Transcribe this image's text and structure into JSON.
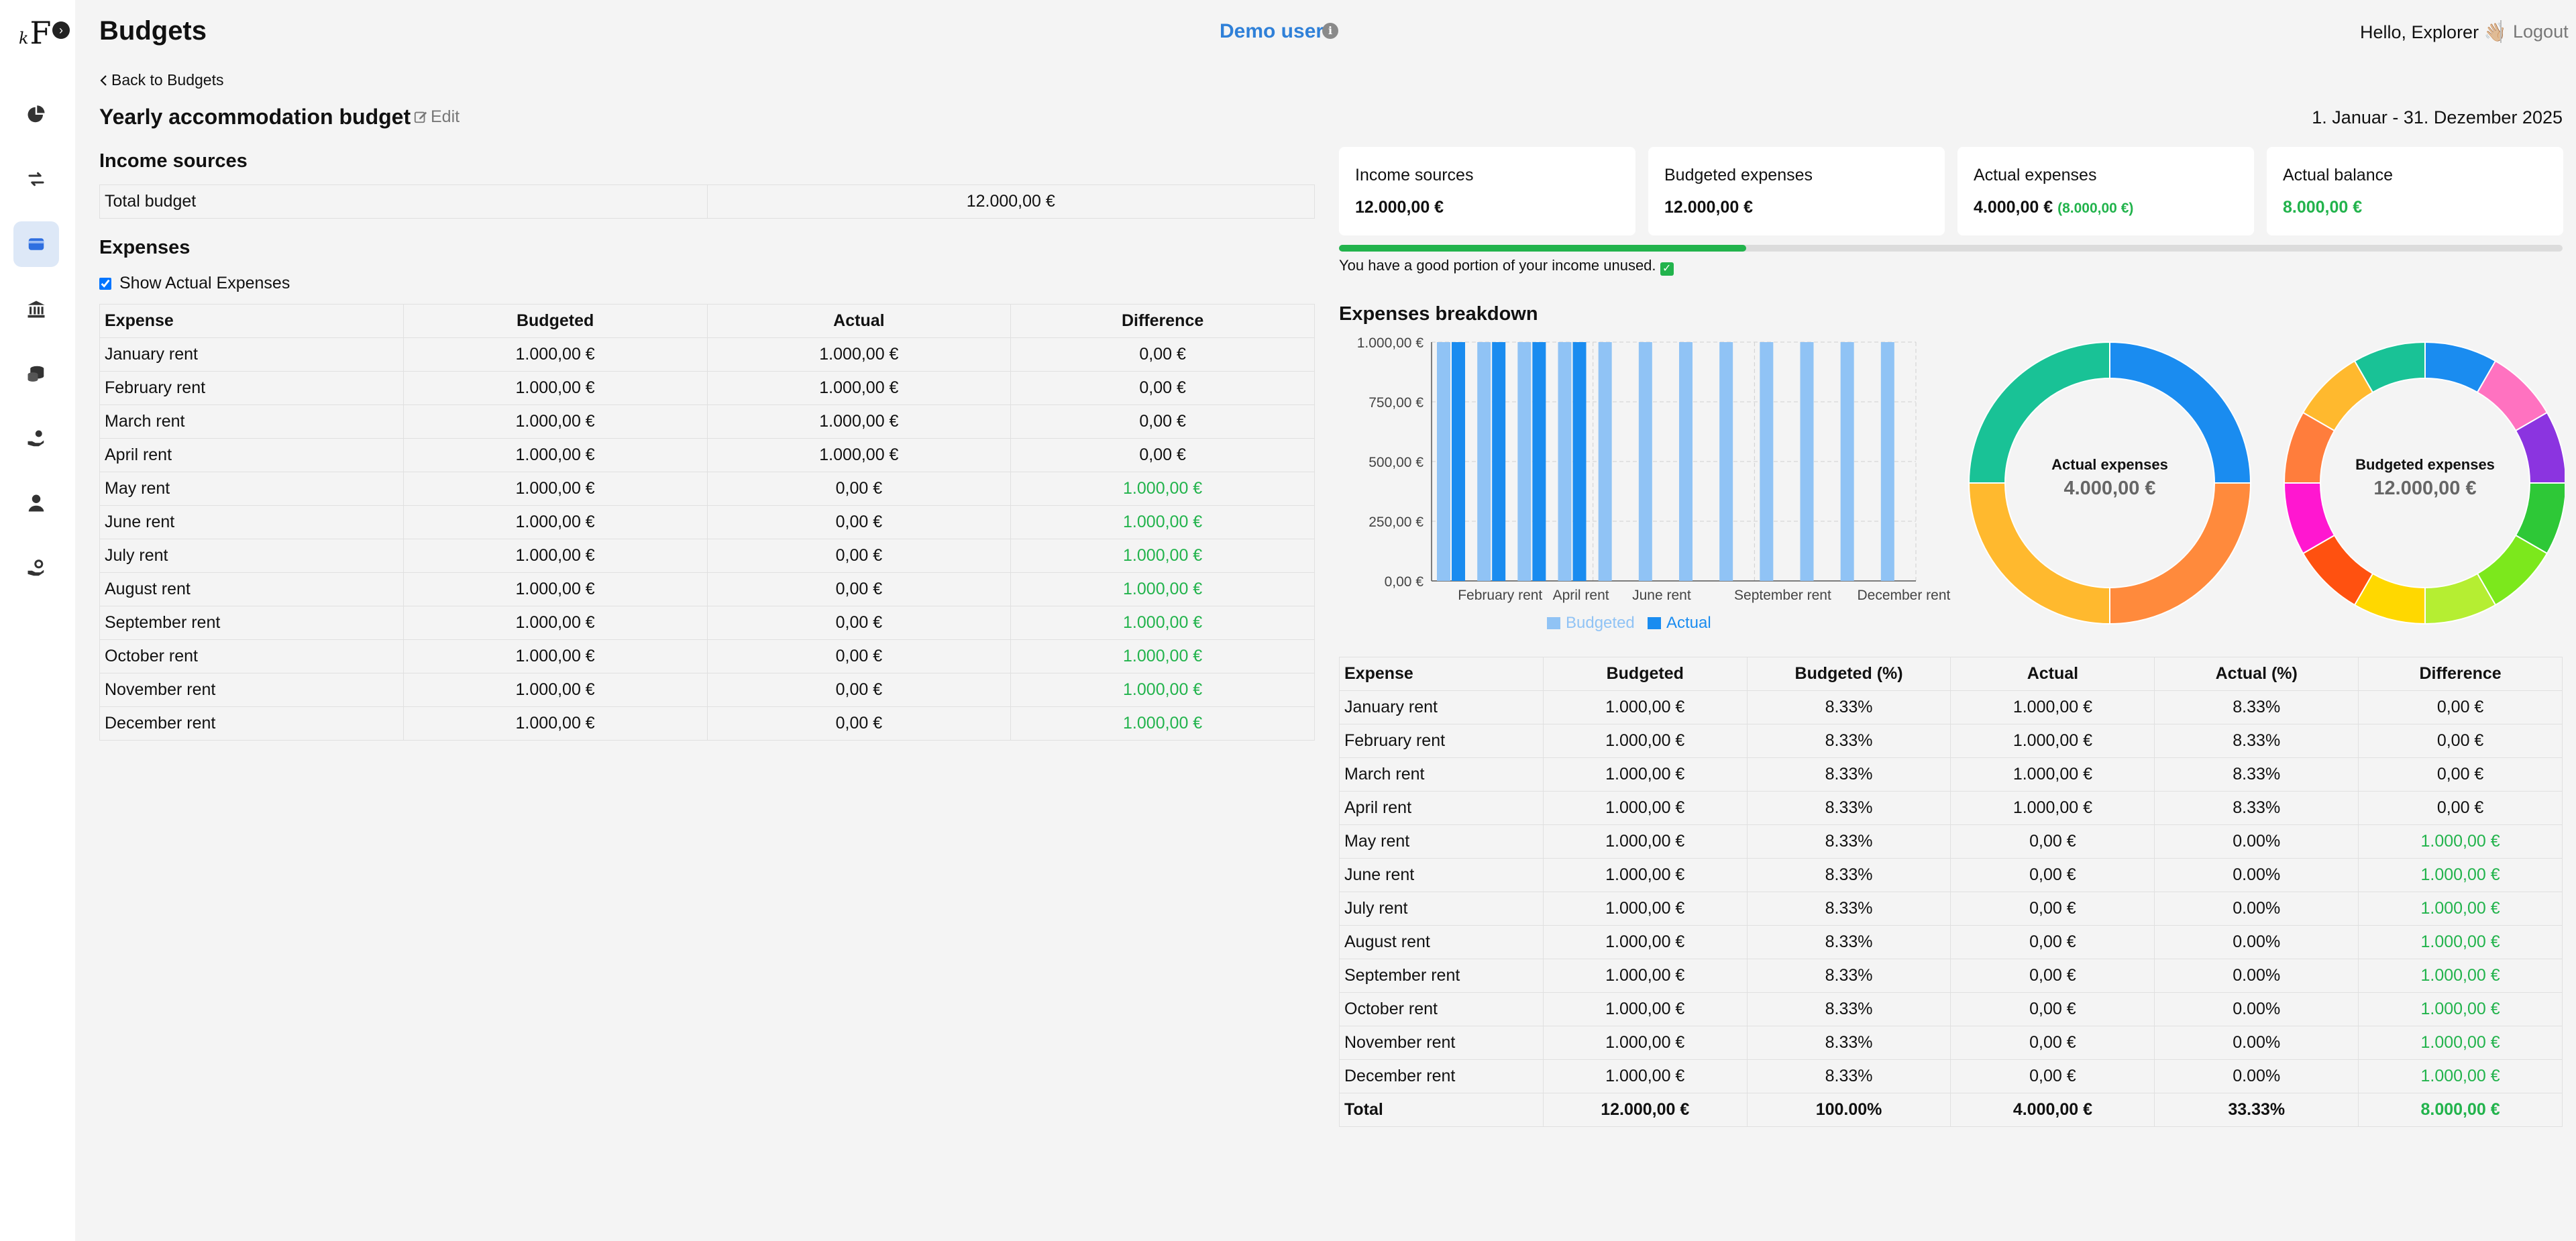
{
  "app": {
    "logo_letter": "F",
    "logo_small": "k",
    "collapse_glyph": "›",
    "title": "Budgets",
    "demo_user": "Demo user",
    "info_glyph": "i",
    "greeting": "Hello, Explorer 👋🏼",
    "logout": "Logout"
  },
  "sidebar": {
    "items": [
      {
        "icon": "pie-chart-icon",
        "active": false
      },
      {
        "icon": "transfer-arrows-icon",
        "active": false
      },
      {
        "icon": "wallet-icon",
        "active": true
      },
      {
        "icon": "bank-icon",
        "active": false
      },
      {
        "icon": "coins-icon",
        "active": false
      },
      {
        "icon": "hand-money-icon",
        "active": false
      },
      {
        "icon": "user-icon",
        "active": false
      },
      {
        "icon": "hand-settings-icon",
        "active": false
      }
    ]
  },
  "budget": {
    "back_label": "Back to Budgets",
    "name": "Yearly accommodation budget",
    "edit_label": "Edit",
    "date_range": "1. Januar - 31. Dezember 2025"
  },
  "income": {
    "title": "Income sources",
    "rows": [
      {
        "label": "Total budget",
        "value": "12.000,00 €"
      }
    ]
  },
  "expenses": {
    "title": "Expenses",
    "show_actual_label": "Show Actual Expenses",
    "show_actual_checked": true,
    "headers": [
      "Expense",
      "Budgeted",
      "Actual",
      "Difference"
    ],
    "rows": [
      [
        "January rent",
        "1.000,00 €",
        "1.000,00 €",
        "0,00 €"
      ],
      [
        "February rent",
        "1.000,00 €",
        "1.000,00 €",
        "0,00 €"
      ],
      [
        "March rent",
        "1.000,00 €",
        "1.000,00 €",
        "0,00 €"
      ],
      [
        "April rent",
        "1.000,00 €",
        "1.000,00 €",
        "0,00 €"
      ],
      [
        "May rent",
        "1.000,00 €",
        "0,00 €",
        "1.000,00 €"
      ],
      [
        "June rent",
        "1.000,00 €",
        "0,00 €",
        "1.000,00 €"
      ],
      [
        "July rent",
        "1.000,00 €",
        "0,00 €",
        "1.000,00 €"
      ],
      [
        "August rent",
        "1.000,00 €",
        "0,00 €",
        "1.000,00 €"
      ],
      [
        "September rent",
        "1.000,00 €",
        "0,00 €",
        "1.000,00 €"
      ],
      [
        "October rent",
        "1.000,00 €",
        "0,00 €",
        "1.000,00 €"
      ],
      [
        "November rent",
        "1.000,00 €",
        "0,00 €",
        "1.000,00 €"
      ],
      [
        "December rent",
        "1.000,00 €",
        "0,00 €",
        "1.000,00 €"
      ]
    ]
  },
  "summary": {
    "cards": [
      {
        "label": "Income sources",
        "value": "12.000,00 €",
        "extra": ""
      },
      {
        "label": "Budgeted expenses",
        "value": "12.000,00 €",
        "extra": ""
      },
      {
        "label": "Actual expenses",
        "value": "4.000,00 €",
        "extra": "(8.000,00 €)"
      },
      {
        "label": "Actual balance",
        "value": "8.000,00 €",
        "extra": ""
      }
    ],
    "actual_balance_color": "#22b34c",
    "progress_fraction": 0.333,
    "progress_message": "You have a good portion of your income unused."
  },
  "breakdown": {
    "title": "Expenses breakdown",
    "headers": [
      "Expense",
      "Budgeted",
      "Budgeted (%)",
      "Actual",
      "Actual (%)",
      "Difference"
    ],
    "rows": [
      [
        "January rent",
        "1.000,00 €",
        "8.33%",
        "1.000,00 €",
        "8.33%",
        "0,00 €"
      ],
      [
        "February rent",
        "1.000,00 €",
        "8.33%",
        "1.000,00 €",
        "8.33%",
        "0,00 €"
      ],
      [
        "March rent",
        "1.000,00 €",
        "8.33%",
        "1.000,00 €",
        "8.33%",
        "0,00 €"
      ],
      [
        "April rent",
        "1.000,00 €",
        "8.33%",
        "1.000,00 €",
        "8.33%",
        "0,00 €"
      ],
      [
        "May rent",
        "1.000,00 €",
        "8.33%",
        "0,00 €",
        "0.00%",
        "1.000,00 €"
      ],
      [
        "June rent",
        "1.000,00 €",
        "8.33%",
        "0,00 €",
        "0.00%",
        "1.000,00 €"
      ],
      [
        "July rent",
        "1.000,00 €",
        "8.33%",
        "0,00 €",
        "0.00%",
        "1.000,00 €"
      ],
      [
        "August rent",
        "1.000,00 €",
        "8.33%",
        "0,00 €",
        "0.00%",
        "1.000,00 €"
      ],
      [
        "September rent",
        "1.000,00 €",
        "8.33%",
        "0,00 €",
        "0.00%",
        "1.000,00 €"
      ],
      [
        "October rent",
        "1.000,00 €",
        "8.33%",
        "0,00 €",
        "0.00%",
        "1.000,00 €"
      ],
      [
        "November rent",
        "1.000,00 €",
        "8.33%",
        "0,00 €",
        "0.00%",
        "1.000,00 €"
      ],
      [
        "December rent",
        "1.000,00 €",
        "8.33%",
        "0,00 €",
        "0.00%",
        "1.000,00 €"
      ]
    ],
    "total": [
      "Total",
      "12.000,00 €",
      "100.00%",
      "4.000,00 €",
      "33.33%",
      "8.000,00 €"
    ]
  },
  "chart_data": [
    {
      "type": "bar",
      "categories": [
        "January rent",
        "February rent",
        "March rent",
        "April rent",
        "May rent",
        "June rent",
        "July rent",
        "August rent",
        "September rent",
        "October rent",
        "November rent",
        "December rent"
      ],
      "visible_tick_labels": [
        "February rent",
        "April rent",
        "June rent",
        "September rent",
        "December rent"
      ],
      "series": [
        {
          "name": "Budgeted",
          "color": "#90c3f5",
          "values": [
            1000,
            1000,
            1000,
            1000,
            1000,
            1000,
            1000,
            1000,
            1000,
            1000,
            1000,
            1000
          ]
        },
        {
          "name": "Actual",
          "color": "#1a8cf0",
          "values": [
            1000,
            1000,
            1000,
            1000,
            0,
            0,
            0,
            0,
            0,
            0,
            0,
            0
          ]
        }
      ],
      "y_ticks": [
        "0,00 €",
        "250,00 €",
        "500,00 €",
        "750,00 €",
        "1.000,00 €"
      ],
      "ylim": [
        0,
        1000
      ],
      "legend_position": "bottom"
    },
    {
      "type": "pie",
      "style": "donut",
      "center_title": "Actual expenses",
      "center_value": "4.000,00 €",
      "labels": [
        "January rent",
        "February rent",
        "March rent",
        "April rent"
      ],
      "values": [
        1000,
        1000,
        1000,
        1000
      ],
      "colors": [
        "#1a8cf0",
        "#ff8a3c",
        "#ffb92e",
        "#19c296"
      ]
    },
    {
      "type": "pie",
      "style": "donut",
      "center_title": "Budgeted expenses",
      "center_value": "12.000,00 €",
      "labels": [
        "January rent",
        "February rent",
        "March rent",
        "April rent",
        "May rent",
        "June rent",
        "July rent",
        "August rent",
        "September rent",
        "October rent",
        "November rent",
        "December rent"
      ],
      "values": [
        1000,
        1000,
        1000,
        1000,
        1000,
        1000,
        1000,
        1000,
        1000,
        1000,
        1000,
        1000
      ],
      "colors": [
        "#1a8cf0",
        "#ff72c0",
        "#8b34e0",
        "#2ec837",
        "#7ce81c",
        "#b5ee32",
        "#ffd800",
        "#ff5110",
        "#ff17d0",
        "#ff7d3c",
        "#ffb92e",
        "#19c296"
      ]
    }
  ]
}
